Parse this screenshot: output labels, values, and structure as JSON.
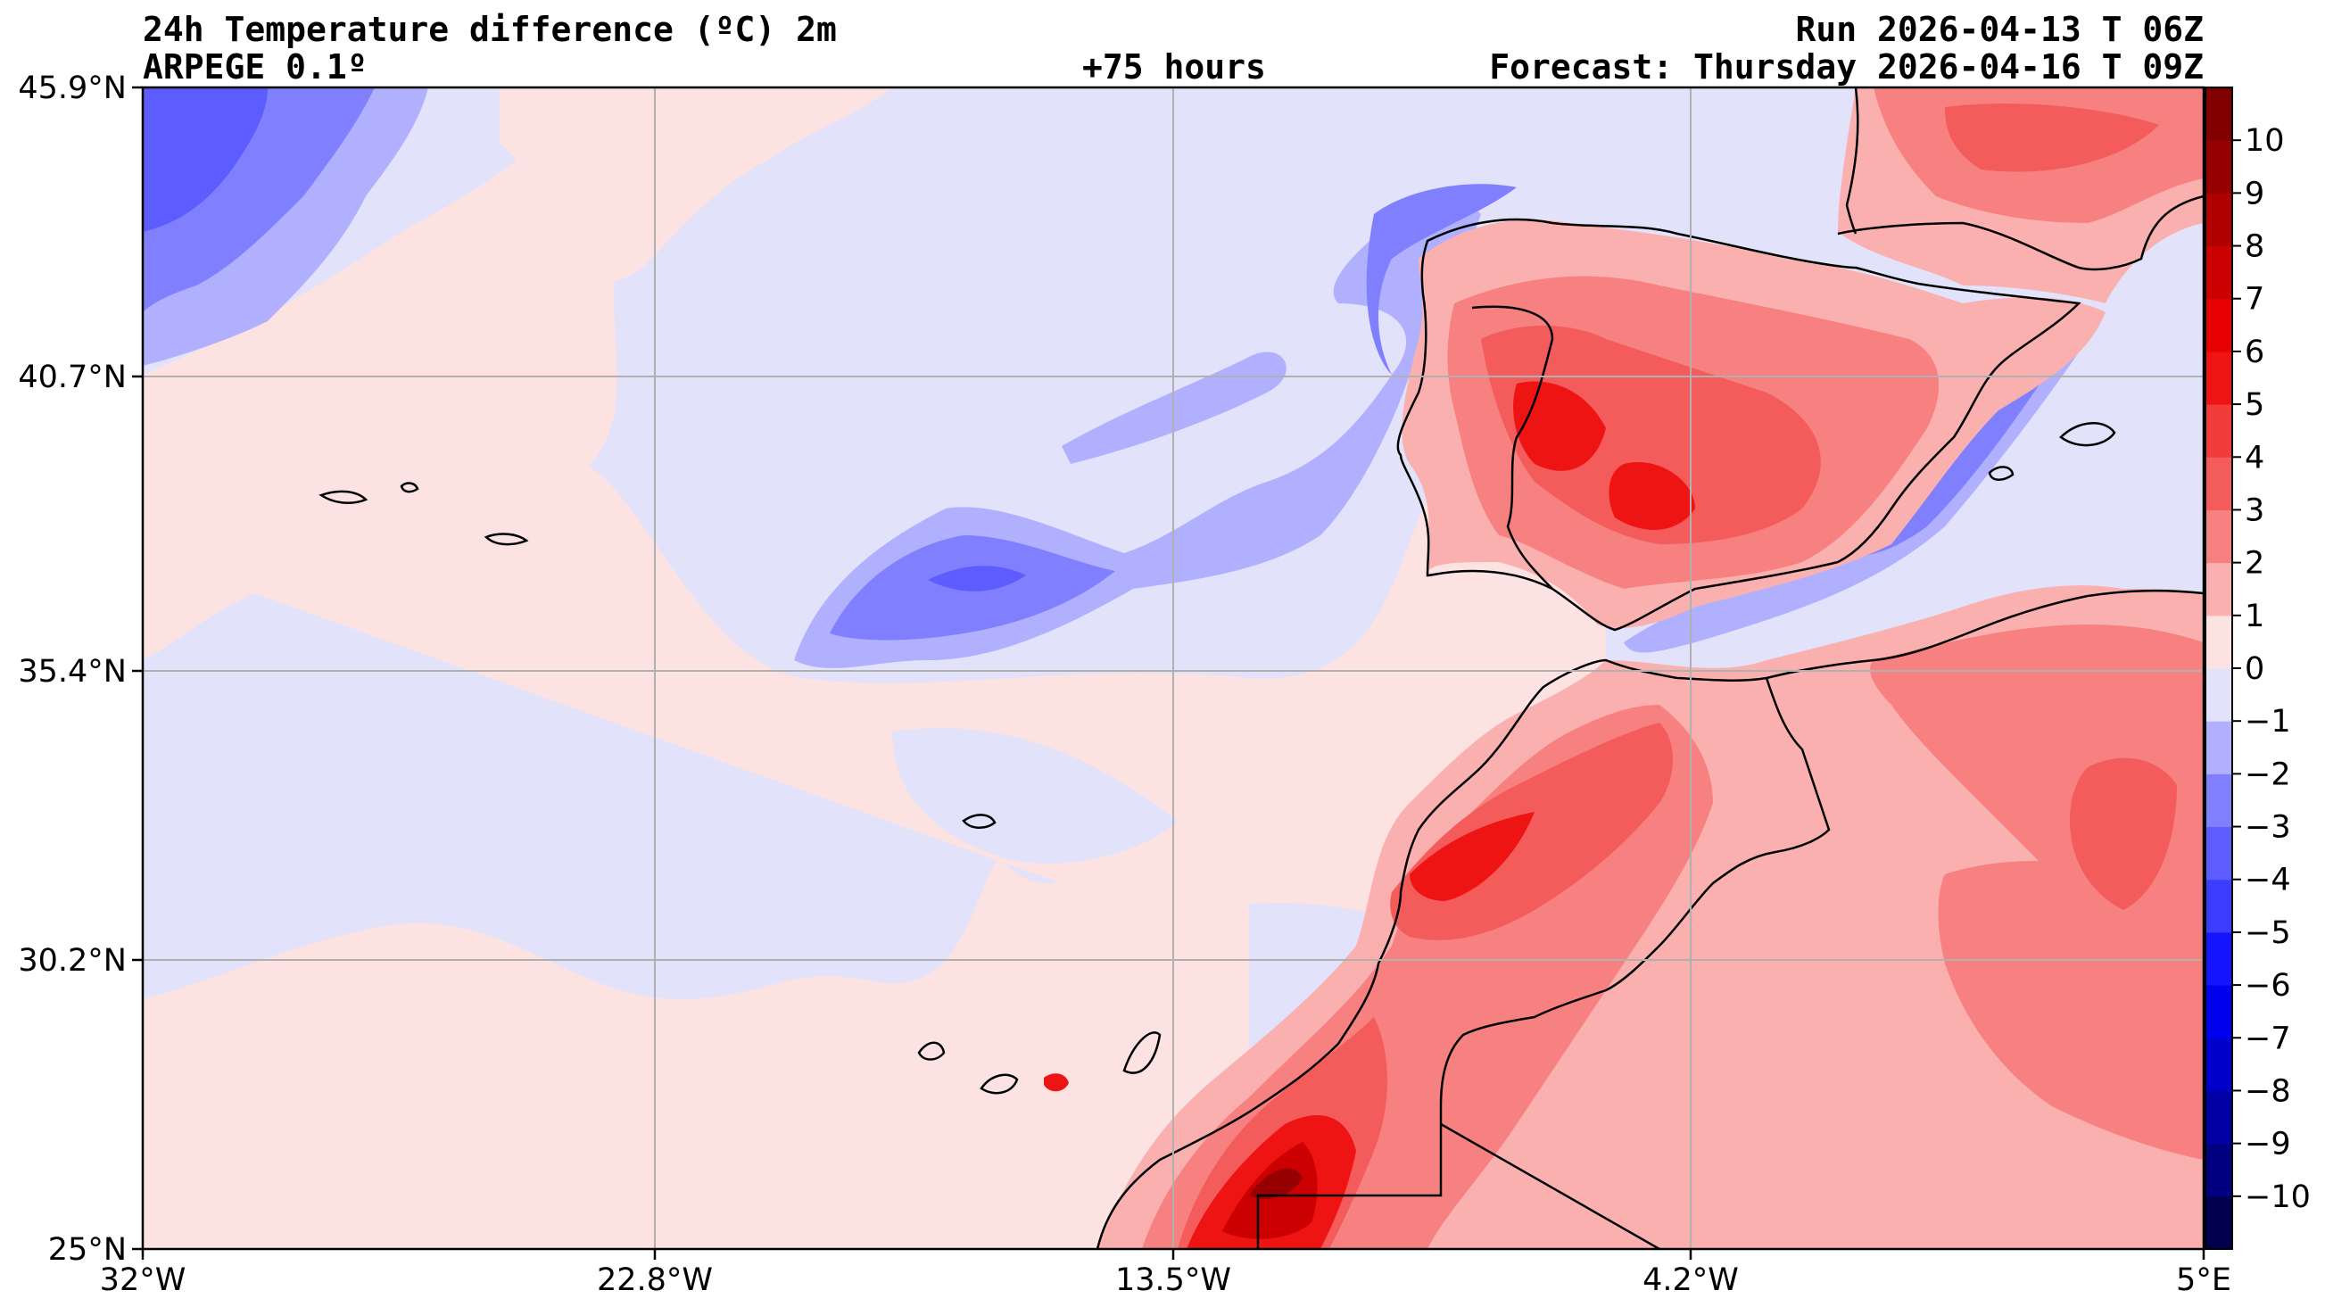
{
  "header": {
    "title": "24h Temperature difference (ºC) 2m",
    "model": "ARPEGE 0.1º",
    "lead": "+75 hours",
    "run": "Run 2026-04-13 T 06Z",
    "forecast": "Forecast: Thursday 2026-04-16 T 09Z"
  },
  "axes": {
    "lat_labels": [
      "45.9°N",
      "40.7°N",
      "35.4°N",
      "30.2°N",
      "25°N"
    ],
    "lon_labels": [
      "32°W",
      "22.8°W",
      "13.5°W",
      "4.2°W",
      "5°E"
    ],
    "lat_values": [
      45.9,
      40.7,
      35.4,
      30.2,
      25.0
    ],
    "lon_values": [
      -32,
      -22.8,
      -13.5,
      -4.2,
      5.0
    ],
    "lat_range": [
      25.0,
      45.9
    ],
    "lon_range": [
      -32,
      5
    ]
  },
  "colorbar": {
    "labels": [
      "10",
      "9",
      "8",
      "7",
      "6",
      "5",
      "4",
      "3",
      "2",
      "1",
      "0",
      "−1",
      "−2",
      "−3",
      "−4",
      "−5",
      "−6",
      "−7",
      "−8",
      "−9",
      "−10"
    ],
    "levels": [
      -11,
      -10,
      -9,
      -8,
      -7,
      -6,
      -5,
      -4,
      -3,
      -2,
      -1,
      0,
      1,
      2,
      3,
      4,
      5,
      6,
      7,
      8,
      9,
      10,
      11
    ],
    "colors": [
      "#00004f",
      "#000080",
      "#0000a6",
      "#0000cc",
      "#0000ee",
      "#1414ff",
      "#3c3cff",
      "#5c5cff",
      "#8080ff",
      "#b0b0ff",
      "#e2e2fb",
      "#fde2e2",
      "#fbb0b0",
      "#f78080",
      "#f45c5c",
      "#f23c3c",
      "#ee1414",
      "#e60000",
      "#cc0000",
      "#b00000",
      "#960000",
      "#800000"
    ]
  },
  "map_colors": {
    "ocean_neg": "#e2e2fb",
    "ocean_pos": "#fde2e2",
    "cool_1": "#b0b0ff",
    "cool_2": "#8080ff",
    "cool_3": "#5c5cff",
    "warm_1": "#fbb0b0",
    "warm_2": "#f78080",
    "warm_3": "#f45c5c",
    "warm_4": "#ee1414",
    "warm_5": "#cc0000",
    "warm_6": "#960000",
    "coast": "#000000",
    "grid": "#b0b0b0"
  }
}
